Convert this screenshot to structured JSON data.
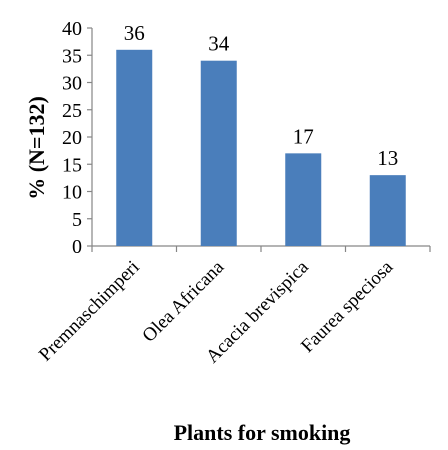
{
  "chart_data": {
    "type": "bar",
    "categories": [
      "Premnaschimperi",
      "Olea Africana",
      "Acacia brevispica",
      "Faurea speciosa"
    ],
    "values": [
      36,
      34,
      17,
      13
    ],
    "data_labels": [
      "36",
      "34",
      "17",
      "13"
    ],
    "xlabel": "Plants for smoking",
    "ylabel": "% (N=132)",
    "ylim": [
      0,
      40
    ],
    "yticks": [
      0,
      5,
      10,
      15,
      20,
      25,
      30,
      35,
      40
    ],
    "grid": false,
    "legend": "none",
    "bar_color": "#4a7ebb"
  }
}
